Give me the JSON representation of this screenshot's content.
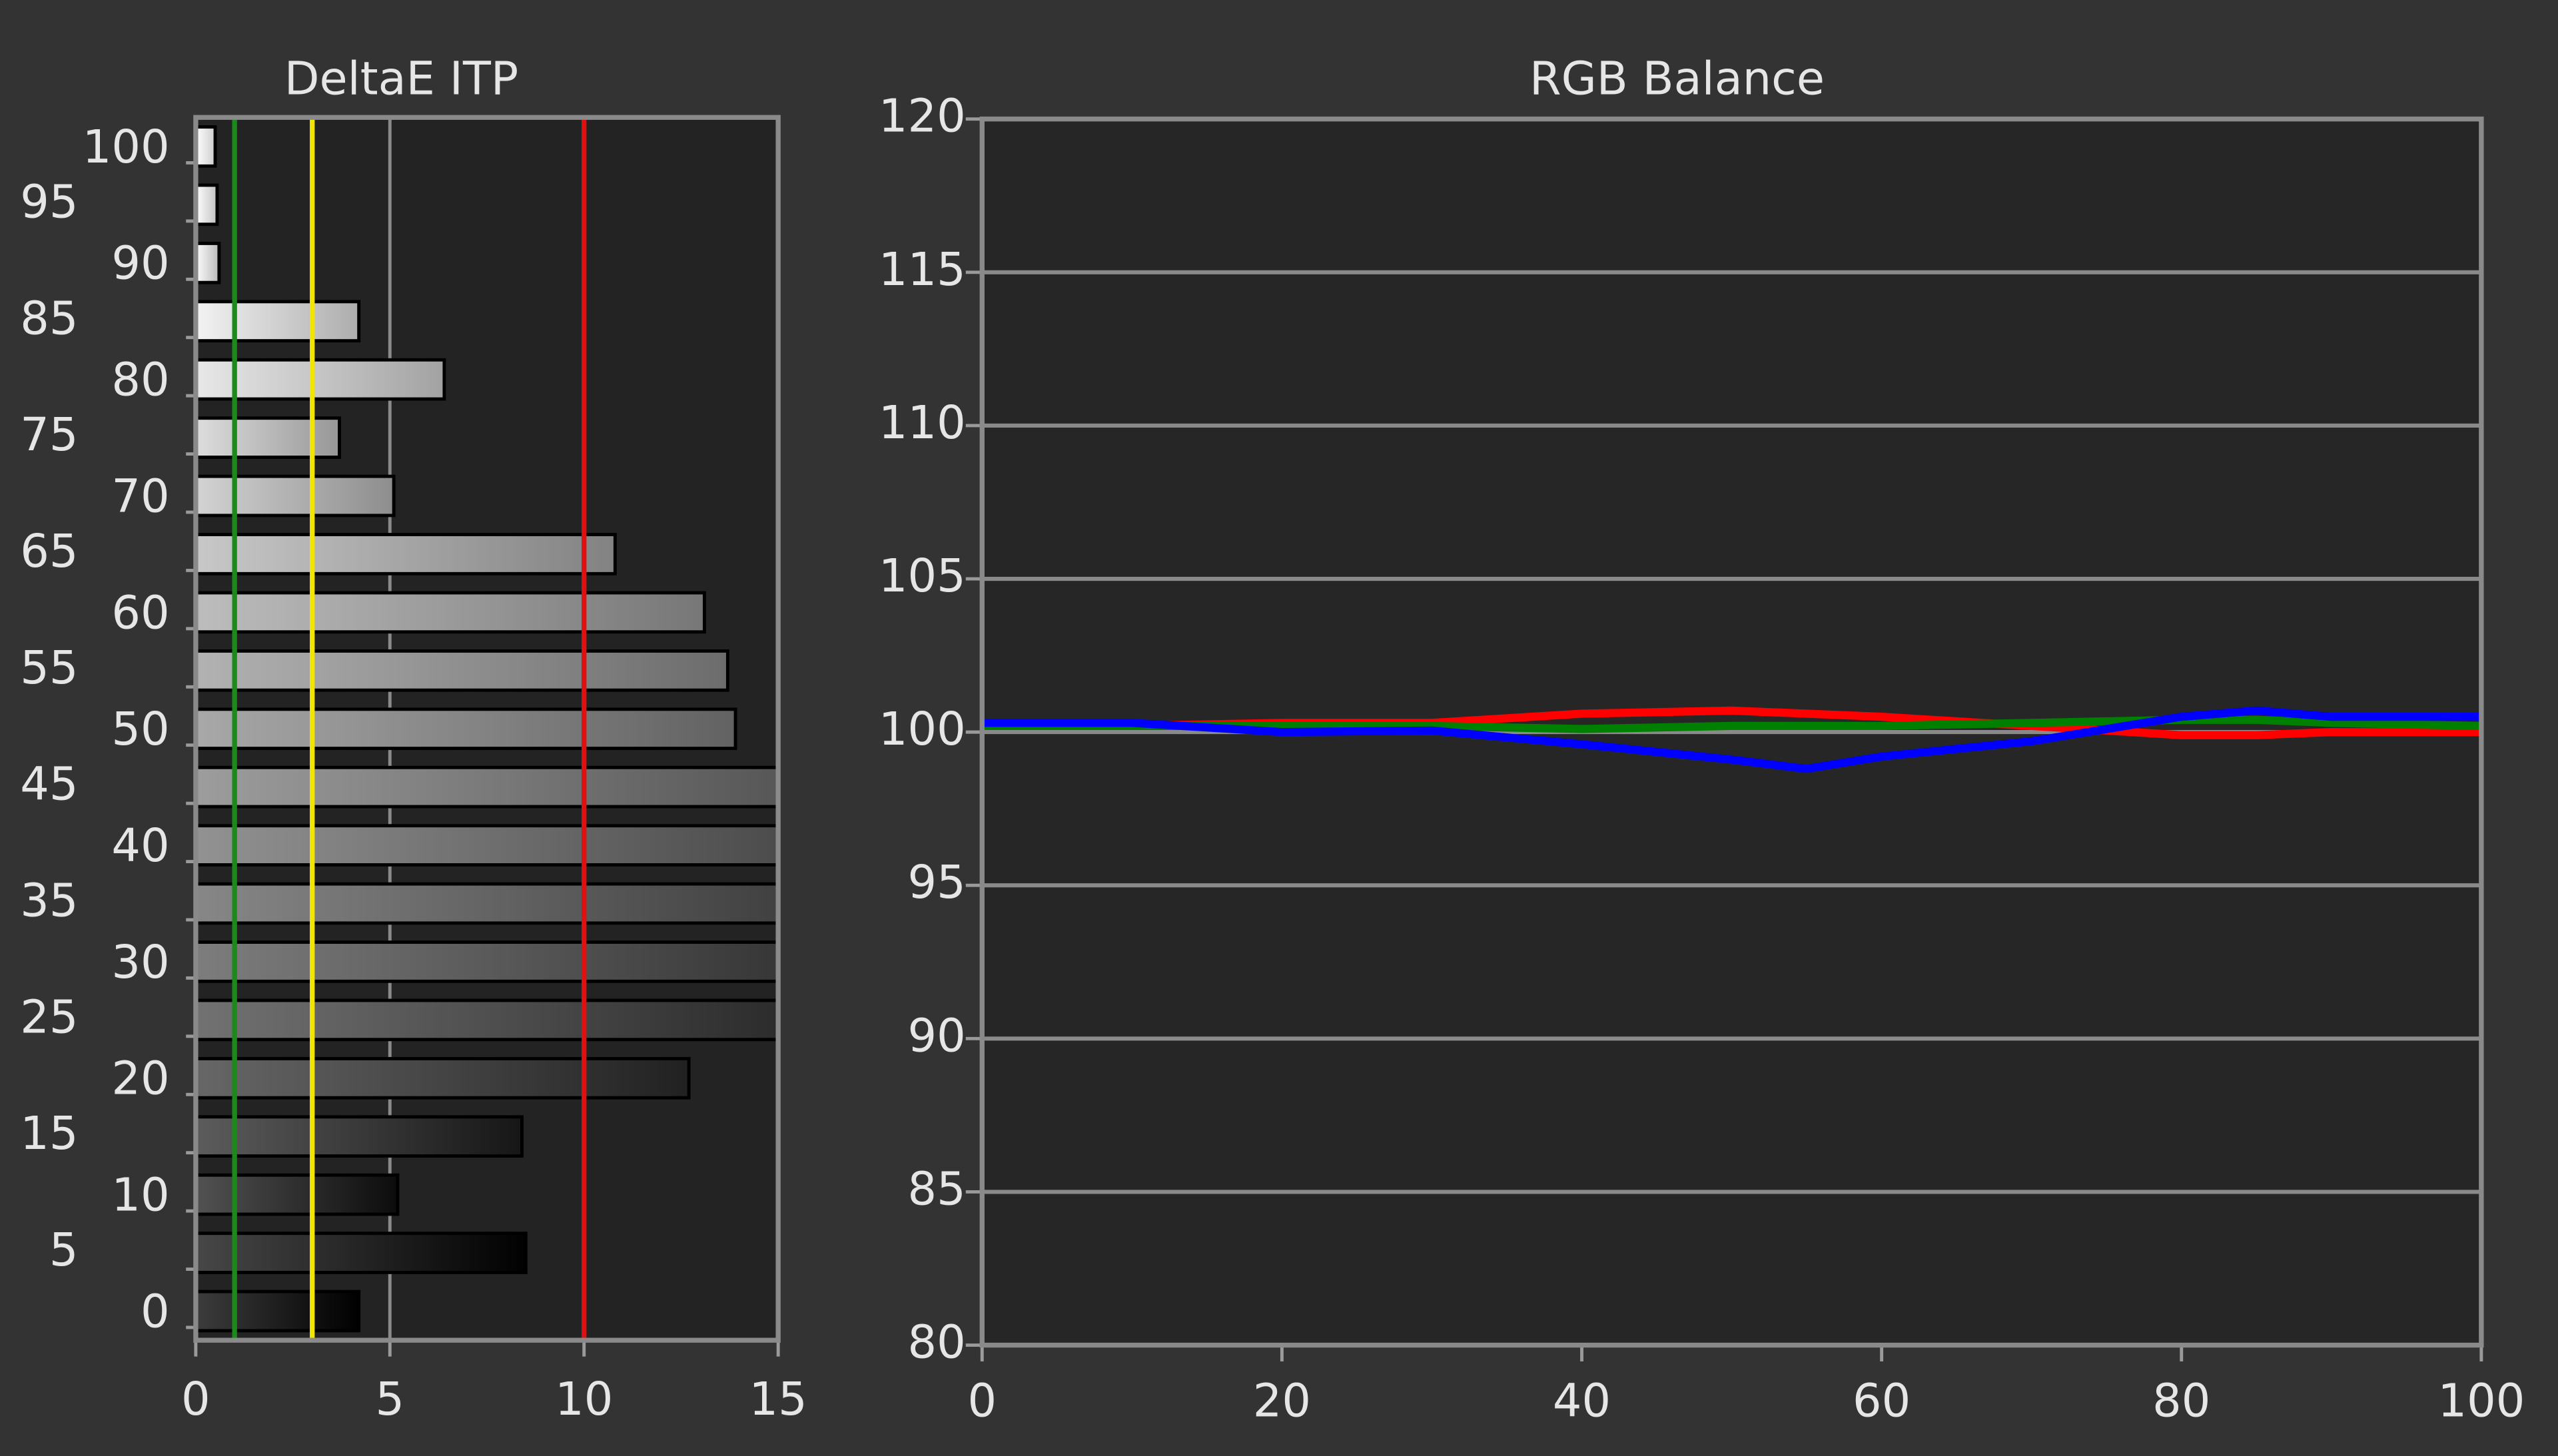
{
  "chart_data": [
    {
      "type": "bar",
      "orientation": "horizontal",
      "title": "DeltaE ITP",
      "categories": [
        "0",
        "5",
        "10",
        "15",
        "20",
        "25",
        "30",
        "35",
        "40",
        "45",
        "50",
        "55",
        "60",
        "65",
        "70",
        "75",
        "80",
        "85",
        "90",
        "95",
        "100"
      ],
      "values": [
        4.2,
        8.5,
        5.2,
        8.4,
        12.7,
        15,
        15,
        15,
        15,
        15,
        13.9,
        13.7,
        13.1,
        10.8,
        5.1,
        3.7,
        6.4,
        4.2,
        0.6,
        0.55,
        0.5
      ],
      "xlim": [
        0,
        15
      ],
      "xticks": [
        0,
        5,
        10,
        15
      ],
      "grid": true,
      "reference_lines": [
        {
          "value": 1,
          "color": "#1a8a1a"
        },
        {
          "value": 3,
          "color": "#f2e600"
        },
        {
          "value": 10,
          "color": "#e01010"
        }
      ]
    },
    {
      "type": "line",
      "title": "RGB Balance",
      "x": [
        0,
        10,
        20,
        30,
        40,
        50,
        55,
        60,
        70,
        80,
        85,
        90,
        100
      ],
      "series": [
        {
          "name": "Red",
          "color": "#ff0000",
          "values": [
            100.2,
            100.2,
            100.3,
            100.3,
            100.6,
            100.7,
            100.6,
            100.5,
            100.2,
            99.9,
            99.9,
            100.0,
            100.0
          ]
        },
        {
          "name": "Green",
          "color": "#008000",
          "values": [
            100.2,
            100.2,
            100.2,
            100.2,
            100.1,
            100.2,
            100.2,
            100.2,
            100.3,
            100.4,
            100.4,
            100.3,
            100.2
          ]
        },
        {
          "name": "Blue",
          "color": "#0000ff",
          "values": [
            100.3,
            100.3,
            100.0,
            100.05,
            99.6,
            99.1,
            98.8,
            99.2,
            99.7,
            100.5,
            100.7,
            100.5,
            100.5
          ]
        }
      ],
      "xlim": [
        0,
        100
      ],
      "xticks": [
        0,
        20,
        40,
        60,
        80,
        100
      ],
      "ylim": [
        80,
        120
      ],
      "yticks": [
        80,
        85,
        90,
        95,
        100,
        105,
        110,
        115,
        120
      ],
      "grid": true
    }
  ]
}
